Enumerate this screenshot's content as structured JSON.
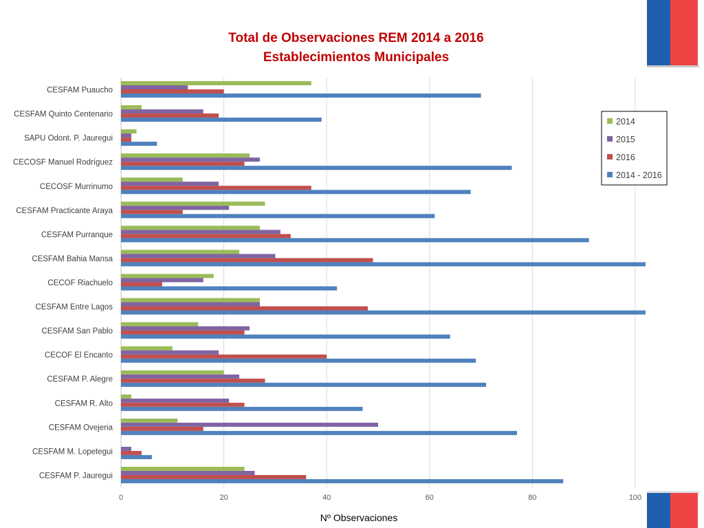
{
  "colors": {
    "s2014": "#9bbb59",
    "s2015": "#8064a2",
    "s2016": "#c0504d",
    "s_total": "#4f81bd",
    "title": "#c00000",
    "deco_blue": "#1f5fae",
    "deco_red": "#ef4444"
  },
  "chart_data": {
    "type": "bar",
    "orientation": "horizontal",
    "title": "Total de Observaciones REM 2014 a 2016",
    "subtitle": "Establecimientos Municipales",
    "xlabel": "Nº Observaciones",
    "ylabel": "",
    "xlim": [
      0,
      100
    ],
    "xticks": [
      0,
      20,
      40,
      60,
      80,
      100
    ],
    "grid": true,
    "legend_position": "top-right",
    "categories": [
      "CESFAM Puaucho",
      "CESFAM Quinto Centenario",
      "SAPU Odont. P. Jauregui",
      "CECOSF Manuel Rodríguez",
      "CECOSF Murrinumo",
      "CESFAM  Practicante Araya",
      "CESFAM  Purranque",
      "CESFAM Bahia Mansa",
      "CECOF Riachuelo",
      "CESFAM  Entre Lagos",
      "CESFAM  San Pablo",
      "CECOF El Encanto",
      "CESFAM P. Alegre",
      "CESFAM R. Alto",
      "CESFAM Ovejeria",
      "CESFAM M. Lopetegui",
      "CESFAM P. Jauregui"
    ],
    "series": [
      {
        "name": "2014",
        "color_key": "s2014",
        "values": [
          37,
          4,
          3,
          25,
          12,
          28,
          27,
          23,
          18,
          27,
          15,
          10,
          20,
          2,
          11,
          0,
          24
        ]
      },
      {
        "name": "2015",
        "color_key": "s2015",
        "values": [
          13,
          16,
          2,
          27,
          19,
          21,
          31,
          30,
          16,
          27,
          25,
          19,
          23,
          21,
          50,
          2,
          26
        ]
      },
      {
        "name": "2016",
        "color_key": "s2016",
        "values": [
          20,
          19,
          2,
          24,
          37,
          12,
          33,
          49,
          8,
          48,
          24,
          40,
          28,
          24,
          16,
          4,
          36
        ]
      },
      {
        "name": "2014 - 2016",
        "color_key": "s_total",
        "values": [
          70,
          39,
          7,
          76,
          68,
          61,
          91,
          102,
          42,
          102,
          64,
          69,
          71,
          47,
          77,
          6,
          86
        ]
      }
    ]
  }
}
